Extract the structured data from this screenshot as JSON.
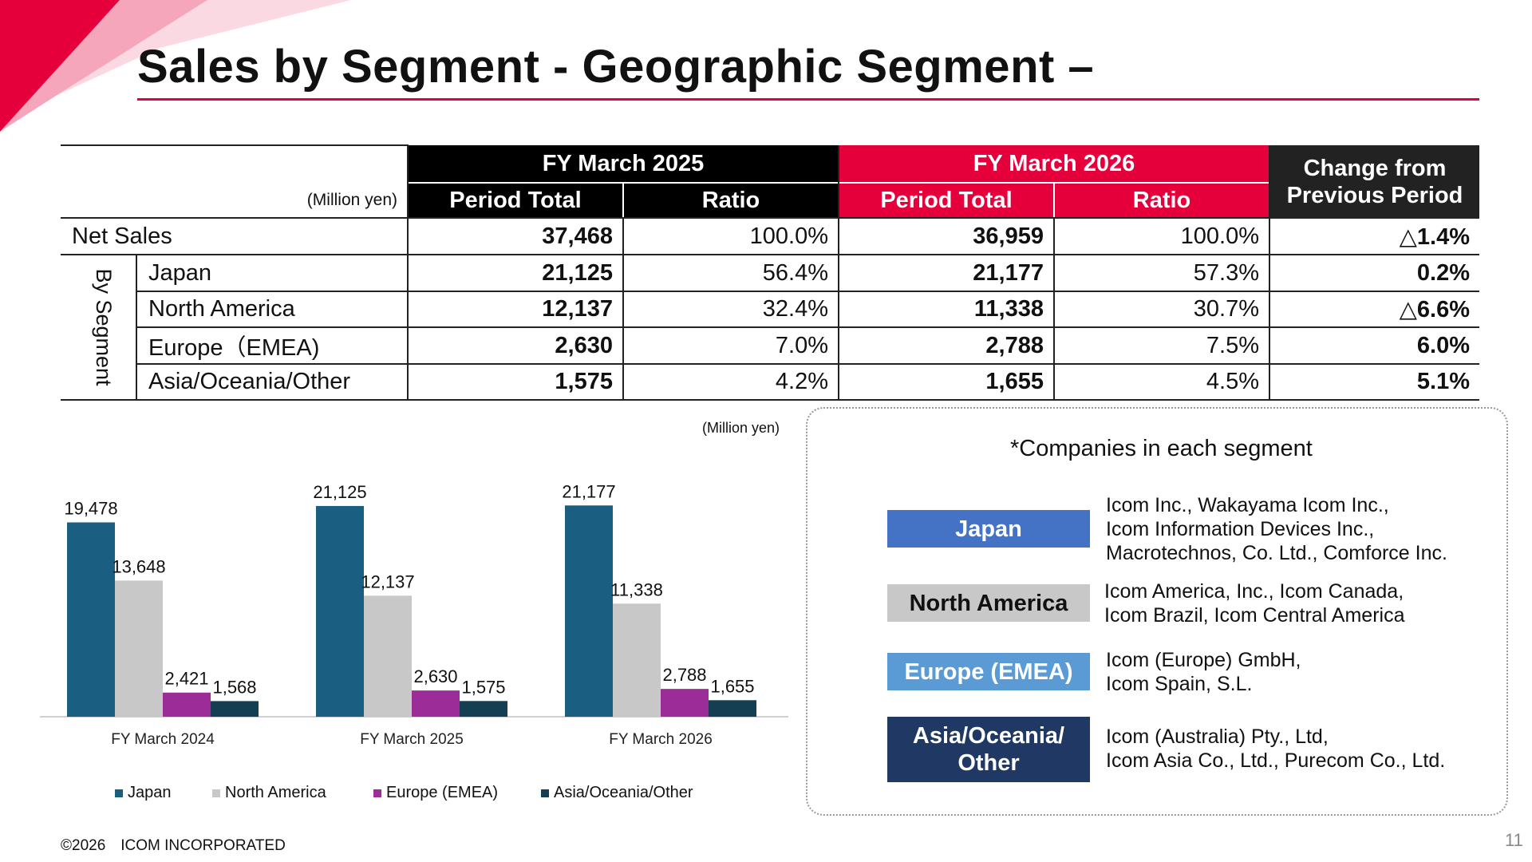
{
  "title": "Sales by Segment - Geographic Segment –",
  "table": {
    "unit": "(Million yen)",
    "fy2025_label": "FY March 2025",
    "fy2026_label": "FY March 2026",
    "change_label_line1": "Change from",
    "change_label_line2": "Previous Period",
    "col_period_total": "Period Total",
    "col_ratio": "Ratio",
    "by_segment_label": "By Segment",
    "rows": [
      {
        "label": "Net Sales",
        "fy2025_total": "37,468",
        "fy2025_ratio": "100.0%",
        "fy2026_total": "36,959",
        "fy2026_ratio": "100.0%",
        "change": "△1.4%"
      },
      {
        "label": "Japan",
        "fy2025_total": "21,125",
        "fy2025_ratio": "56.4%",
        "fy2026_total": "21,177",
        "fy2026_ratio": "57.3%",
        "change": "0.2%"
      },
      {
        "label": "North America",
        "fy2025_total": "12,137",
        "fy2025_ratio": "32.4%",
        "fy2026_total": "11,338",
        "fy2026_ratio": "30.7%",
        "change": "△6.6%"
      },
      {
        "label": "Europe（EMEA)",
        "fy2025_total": "2,630",
        "fy2025_ratio": "7.0%",
        "fy2026_total": "2,788",
        "fy2026_ratio": "7.5%",
        "change": "6.0%"
      },
      {
        "label": "Asia/Oceania/Other",
        "fy2025_total": "1,575",
        "fy2025_ratio": "4.2%",
        "fy2026_total": "1,655",
        "fy2026_ratio": "4.5%",
        "change": "5.1%"
      }
    ]
  },
  "chart_unit": "(Million yen)",
  "chart_data": {
    "type": "bar",
    "categories": [
      "FY March 2024",
      "FY March 2025",
      "FY March 2026"
    ],
    "series": [
      {
        "name": "Japan",
        "values": [
          19478,
          21125,
          21177
        ],
        "labels": [
          "19,478",
          "21,125",
          "21,177"
        ],
        "color": "#1a5f82"
      },
      {
        "name": "North America",
        "values": [
          13648,
          12137,
          11338
        ],
        "labels": [
          "13,648",
          "12,137",
          "11,338"
        ],
        "color": "#c8c8c8"
      },
      {
        "name": "Europe (EMEA)",
        "values": [
          2421,
          2630,
          2788
        ],
        "labels": [
          "2,421",
          "2,630",
          "2,788"
        ],
        "color": "#9b2c98"
      },
      {
        "name": "Asia/Oceania/Other",
        "values": [
          1568,
          1575,
          1655
        ],
        "labels": [
          "1,568",
          "1,575",
          "1,655"
        ],
        "color": "#143e52"
      }
    ],
    "ylim": [
      0,
      24000
    ],
    "legend": "bottom",
    "grid": false
  },
  "companies": {
    "title": "*Companies in each segment",
    "segments": [
      {
        "name": "Japan",
        "lines": [
          "Icom Inc., Wakayama Icom Inc.,",
          "Icom Information Devices Inc.,",
          "Macrotechnos, Co. Ltd., Comforce Inc."
        ],
        "bg": "#4472c4",
        "fg": "#ffffff"
      },
      {
        "name": "North America",
        "lines": [
          "Icom America, Inc., Icom Canada,",
          "Icom Brazil, Icom Central America"
        ],
        "bg": "#c8c8c8",
        "fg": "#111111"
      },
      {
        "name": "Europe (EMEA)",
        "lines": [
          "Icom (Europe) GmbH,",
          "Icom Spain, S.L."
        ],
        "bg": "#5b9bd5",
        "fg": "#ffffff"
      },
      {
        "name_line1": "Asia/Oceania/",
        "name_line2": "Other",
        "lines": [
          "Icom (Australia) Pty., Ltd,",
          "Icom Asia Co., Ltd., Purecom Co., Ltd."
        ],
        "bg": "#1f3864",
        "fg": "#ffffff"
      }
    ]
  },
  "footer": "©2026　ICOM INCORPORATED",
  "page_number": "11",
  "colors": {
    "accent_red": "#e5003b",
    "header_black": "#000000"
  }
}
